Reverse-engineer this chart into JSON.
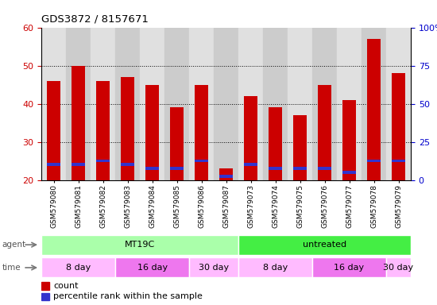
{
  "title": "GDS3872 / 8157671",
  "samples": [
    "GSM579080",
    "GSM579081",
    "GSM579082",
    "GSM579083",
    "GSM579084",
    "GSM579085",
    "GSM579086",
    "GSM579087",
    "GSM579073",
    "GSM579074",
    "GSM579075",
    "GSM579076",
    "GSM579077",
    "GSM579078",
    "GSM579079"
  ],
  "count_values": [
    46,
    50,
    46,
    47,
    45,
    39,
    45,
    23,
    42,
    39,
    37,
    45,
    41,
    57,
    48
  ],
  "percentile_values": [
    24,
    24,
    25,
    24,
    23,
    23,
    25,
    21,
    24,
    23,
    23,
    23,
    22,
    25,
    25
  ],
  "ylim_left": [
    20,
    60
  ],
  "ylim_right": [
    0,
    100
  ],
  "yticks_left": [
    20,
    30,
    40,
    50,
    60
  ],
  "yticks_right": [
    0,
    25,
    50,
    75,
    100
  ],
  "ytick_labels_right": [
    "0",
    "25",
    "50",
    "75",
    "100%"
  ],
  "bar_color_count": "#cc0000",
  "bar_color_percentile": "#3333cc",
  "bar_width": 0.55,
  "agent_labels": [
    {
      "text": "MT19C",
      "start": 0,
      "end": 7,
      "color": "#aaffaa"
    },
    {
      "text": "untreated",
      "start": 8,
      "end": 14,
      "color": "#44ee44"
    }
  ],
  "time_labels": [
    {
      "text": "8 day",
      "start": 0,
      "end": 2,
      "color": "#ffbbff"
    },
    {
      "text": "16 day",
      "start": 3,
      "end": 5,
      "color": "#ee77ee"
    },
    {
      "text": "30 day",
      "start": 6,
      "end": 7,
      "color": "#ffbbff"
    },
    {
      "text": "8 day",
      "start": 8,
      "end": 10,
      "color": "#ffbbff"
    },
    {
      "text": "16 day",
      "start": 11,
      "end": 13,
      "color": "#ee77ee"
    },
    {
      "text": "30 day",
      "start": 14,
      "end": 14,
      "color": "#ffbbff"
    }
  ],
  "tick_color_left": "#cc0000",
  "tick_color_right": "#0000cc",
  "col_bg_even": "#e0e0e0",
  "col_bg_odd": "#cccccc"
}
